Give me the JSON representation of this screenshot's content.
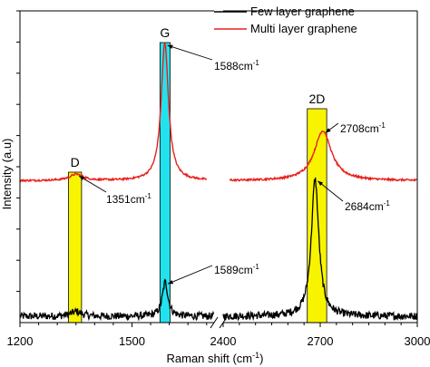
{
  "chart_data": {
    "type": "line",
    "title": "",
    "xlabel": "Raman shift (cm",
    "xlabel_sup": "-1",
    "xlabel_close": ")",
    "ylabel": "Intensity (a.u)",
    "x_axis": {
      "broken": true,
      "segments": [
        {
          "xlim": [
            1200,
            1720
          ],
          "ticks": [
            1200,
            1500
          ],
          "minor_ticks": [
            1250,
            1300,
            1350,
            1400,
            1450,
            1550,
            1600,
            1650,
            1700
          ]
        },
        {
          "xlim": [
            2400,
            3000
          ],
          "ticks": [
            2400,
            2700,
            3000
          ],
          "minor_ticks": [
            2450,
            2500,
            2550,
            2600,
            2650,
            2750,
            2800,
            2850,
            2900,
            2950
          ]
        }
      ]
    },
    "ylim": [
      0,
      1.0
    ],
    "y_ticks_labeled": false,
    "legend": {
      "placement": "top-right",
      "entries": [
        {
          "label": "Few layer graphene",
          "color": "#000000"
        },
        {
          "label": "Multi layer graphene",
          "color": "#e8201c"
        }
      ]
    },
    "highlight_bands": [
      {
        "label": "D",
        "x0": 1330,
        "x1": 1365,
        "color": "#f8f400"
      },
      {
        "label": "G",
        "x0": 1575,
        "x1": 1602,
        "color": "#22e2ee"
      },
      {
        "label": "2D",
        "x0": 2660,
        "x1": 2720,
        "color": "#f8f400"
      }
    ],
    "series": [
      {
        "name": "Few layer graphene",
        "color": "#000000",
        "baseline": 0.02,
        "noise": 0.012,
        "peaks": [
          {
            "x": 1351,
            "height": 0.015,
            "width": 18
          },
          {
            "x": 1589,
            "height": 0.11,
            "width": 9
          },
          {
            "x": 2684,
            "height": 0.44,
            "width": 14
          }
        ]
      },
      {
        "name": "Multi layer graphene",
        "color": "#e8201c",
        "baseline": 0.455,
        "noise": 0.003,
        "peaks": [
          {
            "x": 1351,
            "height": 0.02,
            "width": 22
          },
          {
            "x": 1588,
            "height": 0.44,
            "width": 12
          },
          {
            "x": 2708,
            "height": 0.16,
            "width": 32
          }
        ]
      }
    ],
    "annotations": [
      {
        "text": "1351cm",
        "sup": "-1",
        "x": 1351,
        "series": "Multi layer graphene"
      },
      {
        "text": "1588cm",
        "sup": "-1",
        "x": 1588,
        "series": "Multi layer graphene"
      },
      {
        "text": "2708cm",
        "sup": "-1",
        "x": 2708,
        "series": "Multi layer graphene"
      },
      {
        "text": "2684cm",
        "sup": "-1",
        "x": 2684,
        "series": "Few layer graphene"
      },
      {
        "text": "1589cm",
        "sup": "-1",
        "x": 1589,
        "series": "Few layer graphene"
      }
    ]
  }
}
